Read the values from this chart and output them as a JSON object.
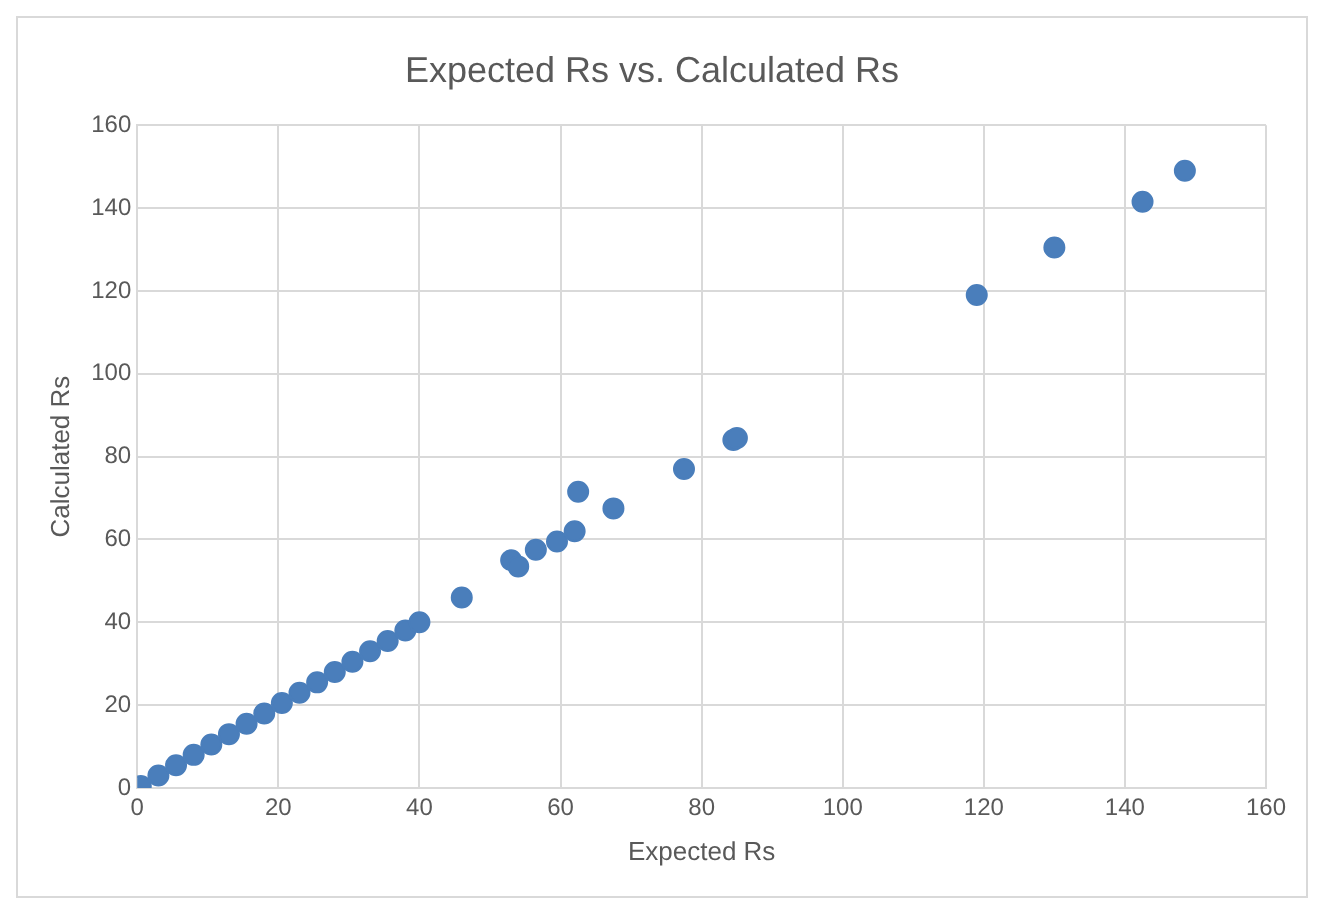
{
  "chart_data": {
    "type": "scatter",
    "title": "Expected Rs vs. Calculated Rs",
    "xlabel": "Expected Rs",
    "ylabel": "Calculated Rs",
    "xlim": [
      0,
      160
    ],
    "xticks": [
      0,
      20,
      40,
      60,
      80,
      100,
      120,
      140,
      160
    ],
    "ylim": [
      0,
      160
    ],
    "yticks": [
      0,
      20,
      40,
      60,
      80,
      100,
      120,
      140,
      160
    ],
    "grid": true,
    "marker": "circle",
    "legend": false,
    "series": [
      {
        "color": "#4a7ebb",
        "x": [
          0.5,
          3,
          5.5,
          8,
          10.5,
          13,
          15.5,
          18,
          20.5,
          23,
          25.5,
          28,
          30.5,
          33,
          35.5,
          38,
          40,
          46,
          53,
          54,
          56.5,
          59.5,
          62,
          62.5,
          67.5,
          77.5,
          84.5,
          85,
          119,
          130,
          142.5,
          148.5
        ],
        "values": [
          0.5,
          3,
          5.5,
          8,
          10.5,
          13,
          15.5,
          18,
          20.5,
          23,
          25.5,
          28,
          30.5,
          33,
          35.5,
          38,
          40,
          46,
          55,
          53.5,
          57.5,
          59.5,
          62,
          71.5,
          67.5,
          77,
          84,
          84.5,
          119,
          130.5,
          141.5,
          149
        ]
      }
    ]
  }
}
